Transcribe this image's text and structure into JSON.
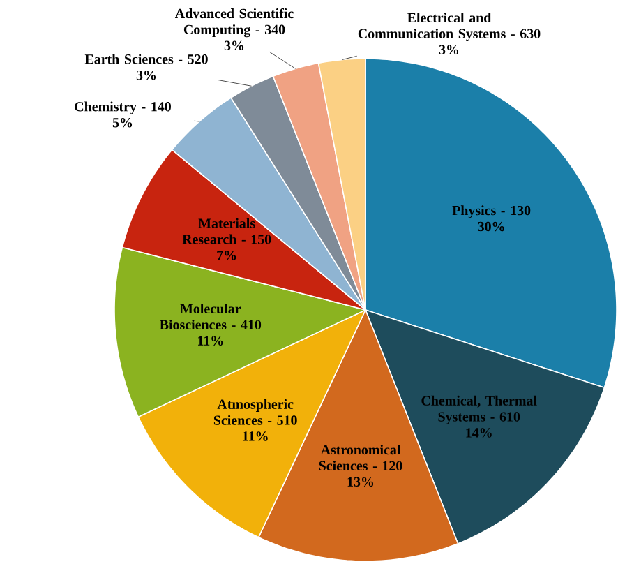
{
  "chart_data": {
    "type": "pie",
    "categories": [
      "Physics - 130",
      "Chemical, Thermal Systems - 610",
      "Astronomical Sciences - 120",
      "Atmospheric Sciences - 510",
      "Molecular Biosciences - 410",
      "Materials Research - 150",
      "Chemistry - 140",
      "Earth Sciences - 520",
      "Advanced Scientific Computing - 340",
      "Electrical and Communication Systems - 630"
    ],
    "values": [
      30,
      14,
      13,
      11,
      11,
      7,
      5,
      3,
      3,
      3
    ],
    "value_labels": [
      "30%",
      "14%",
      "13%",
      "11%",
      "11%",
      "7%",
      "5%",
      "3%",
      "3%",
      "3%"
    ],
    "colors": [
      "#1b7fa9",
      "#1e4c5c",
      "#d2691e",
      "#f2b10a",
      "#8bb320",
      "#c8240f",
      "#8fb4d2",
      "#7f8b98",
      "#f0a283",
      "#fbd084"
    ]
  }
}
